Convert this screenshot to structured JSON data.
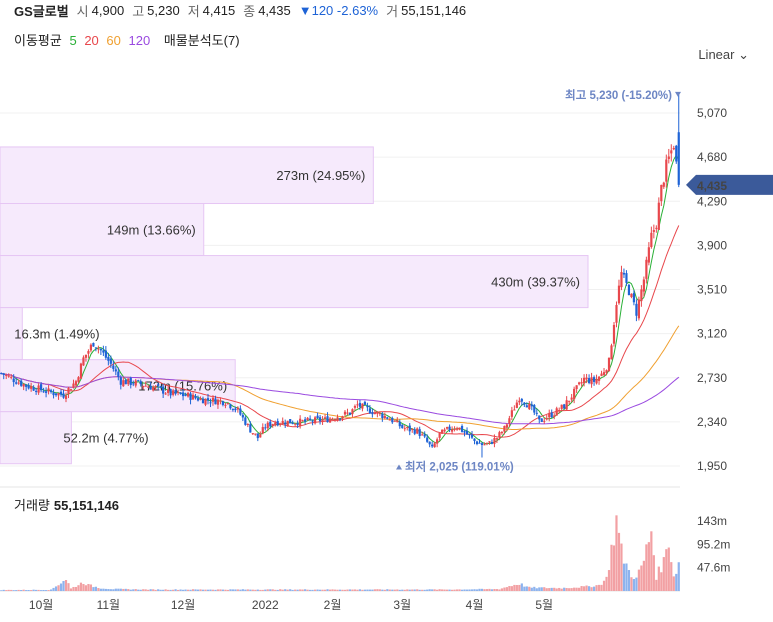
{
  "header": {
    "name": "GS글로벌",
    "open_label": "시",
    "open": "4,900",
    "high_label": "고",
    "high": "5,230",
    "low_label": "저",
    "low": "4,415",
    "close_label": "종",
    "close": "4,435",
    "change": "▼120",
    "change_pct": "-2.63%",
    "volume_label": "거",
    "volume": "55,151,146"
  },
  "ma_legend": {
    "label": "이동평균",
    "p5": "5",
    "p20": "20",
    "p60": "60",
    "p120": "120",
    "profile": "매물분석도(7)"
  },
  "colors": {
    "up": "#e8474c",
    "down": "#1e63d6",
    "ma5": "#2ab037",
    "ma20": "#e8474c",
    "ma60": "#f0a030",
    "ma120": "#9a4ae0",
    "profile_fill": "#f6eafc",
    "profile_stroke": "#e6c6f4",
    "price_tag": "#3b5a9a"
  },
  "scale_button": "Linear",
  "volume_panel": {
    "label": "거래량",
    "value": "55,151,146",
    "ticks": [
      "143m",
      "95.2m",
      "47.6m"
    ],
    "tick_values": [
      143,
      95.2,
      47.6
    ]
  },
  "chart_data": {
    "type": "candlestick",
    "y_ticks": [
      "5,070",
      "4,680",
      "4,290",
      "3,900",
      "3,510",
      "3,120",
      "2,730",
      "2,340",
      "1,950"
    ],
    "y_tick_values": [
      5070,
      4680,
      4290,
      3900,
      3510,
      3120,
      2730,
      2340,
      1950
    ],
    "x_ticks": [
      "10월",
      "11월",
      "12월",
      "2022",
      "2월",
      "3월",
      "4월",
      "5월"
    ],
    "current_price": "4,435",
    "current_value": 4435,
    "max_annotation": "최고 5,230 (-15.20%)",
    "max_value": 5230,
    "min_annotation": "최저 2,025 (119.01%)",
    "min_value": 2025,
    "price_key": [
      [
        0,
        2770
      ],
      [
        10,
        2660
      ],
      [
        20,
        2600
      ],
      [
        25,
        2580
      ],
      [
        30,
        2700
      ],
      [
        33,
        2900
      ],
      [
        37,
        3040
      ],
      [
        40,
        2970
      ],
      [
        44,
        2850
      ],
      [
        48,
        2700
      ],
      [
        55,
        2680
      ],
      [
        62,
        2640
      ],
      [
        68,
        2590
      ],
      [
        75,
        2570
      ],
      [
        80,
        2540
      ],
      [
        85,
        2530
      ],
      [
        90,
        2520
      ],
      [
        95,
        2440
      ],
      [
        100,
        2270
      ],
      [
        103,
        2200
      ],
      [
        106,
        2300
      ],
      [
        110,
        2340
      ],
      [
        120,
        2340
      ],
      [
        130,
        2360
      ],
      [
        140,
        2420
      ],
      [
        143,
        2490
      ],
      [
        147,
        2450
      ],
      [
        155,
        2380
      ],
      [
        158,
        2340
      ],
      [
        161,
        2290
      ],
      [
        164,
        2270
      ],
      [
        167,
        2260
      ],
      [
        170,
        2190
      ],
      [
        173,
        2100
      ],
      [
        176,
        2230
      ],
      [
        180,
        2280
      ],
      [
        183,
        2300
      ],
      [
        187,
        2230
      ],
      [
        190,
        2170
      ],
      [
        193,
        2140
      ],
      [
        196,
        2150
      ],
      [
        199,
        2200
      ],
      [
        202,
        2280
      ],
      [
        205,
        2420
      ],
      [
        208,
        2560
      ],
      [
        211,
        2500
      ],
      [
        214,
        2420
      ],
      [
        216,
        2340
      ],
      [
        218,
        2370
      ],
      [
        222,
        2420
      ],
      [
        226,
        2480
      ],
      [
        230,
        2600
      ],
      [
        234,
        2720
      ],
      [
        238,
        2700
      ],
      [
        241,
        2760
      ],
      [
        244,
        2870
      ],
      [
        247,
        3400
      ],
      [
        249,
        3650
      ],
      [
        252,
        3500
      ],
      [
        255,
        3310
      ],
      [
        258,
        3600
      ],
      [
        261,
        3980
      ],
      [
        263,
        4100
      ],
      [
        265,
        4400
      ],
      [
        267,
        4600
      ],
      [
        270,
        4800
      ],
      [
        272,
        4435
      ]
    ],
    "volume_key": [
      [
        0,
        2
      ],
      [
        20,
        2.5
      ],
      [
        26,
        25
      ],
      [
        28,
        5
      ],
      [
        33,
        18
      ],
      [
        35,
        12
      ],
      [
        40,
        6
      ],
      [
        45,
        4
      ],
      [
        60,
        3
      ],
      [
        100,
        3
      ],
      [
        140,
        3
      ],
      [
        160,
        3
      ],
      [
        180,
        3
      ],
      [
        200,
        4
      ],
      [
        204,
        10
      ],
      [
        208,
        15
      ],
      [
        212,
        7
      ],
      [
        225,
        6
      ],
      [
        235,
        9
      ],
      [
        240,
        12
      ],
      [
        243,
        25
      ],
      [
        247,
        145
      ],
      [
        249,
        80
      ],
      [
        252,
        40
      ],
      [
        255,
        25
      ],
      [
        258,
        62
      ],
      [
        261,
        125
      ],
      [
        263,
        30
      ],
      [
        266,
        60
      ],
      [
        268,
        108
      ],
      [
        270,
        30
      ],
      [
        272,
        55
      ]
    ],
    "volume_profile": [
      {
        "label": "273m (24.95%)",
        "value_m": 273,
        "pct": 24.95,
        "low": 4270,
        "high": 4770
      },
      {
        "label": "149m (13.66%)",
        "value_m": 149,
        "pct": 13.66,
        "low": 3810,
        "high": 4270
      },
      {
        "label": "430m (39.37%)",
        "value_m": 430,
        "pct": 39.37,
        "low": 3350,
        "high": 3810
      },
      {
        "label": "16.3m (1.49%)",
        "value_m": 16.3,
        "pct": 1.49,
        "low": 2890,
        "high": 3350
      },
      {
        "label": "172m (15.76%)",
        "value_m": 172,
        "pct": 15.76,
        "low": 2430,
        "high": 2890
      },
      {
        "label": "52.2m (4.77%)",
        "value_m": 52.2,
        "pct": 4.77,
        "low": 1970,
        "high": 2430
      }
    ],
    "ma_legend": [
      "5",
      "20",
      "60",
      "120"
    ]
  }
}
